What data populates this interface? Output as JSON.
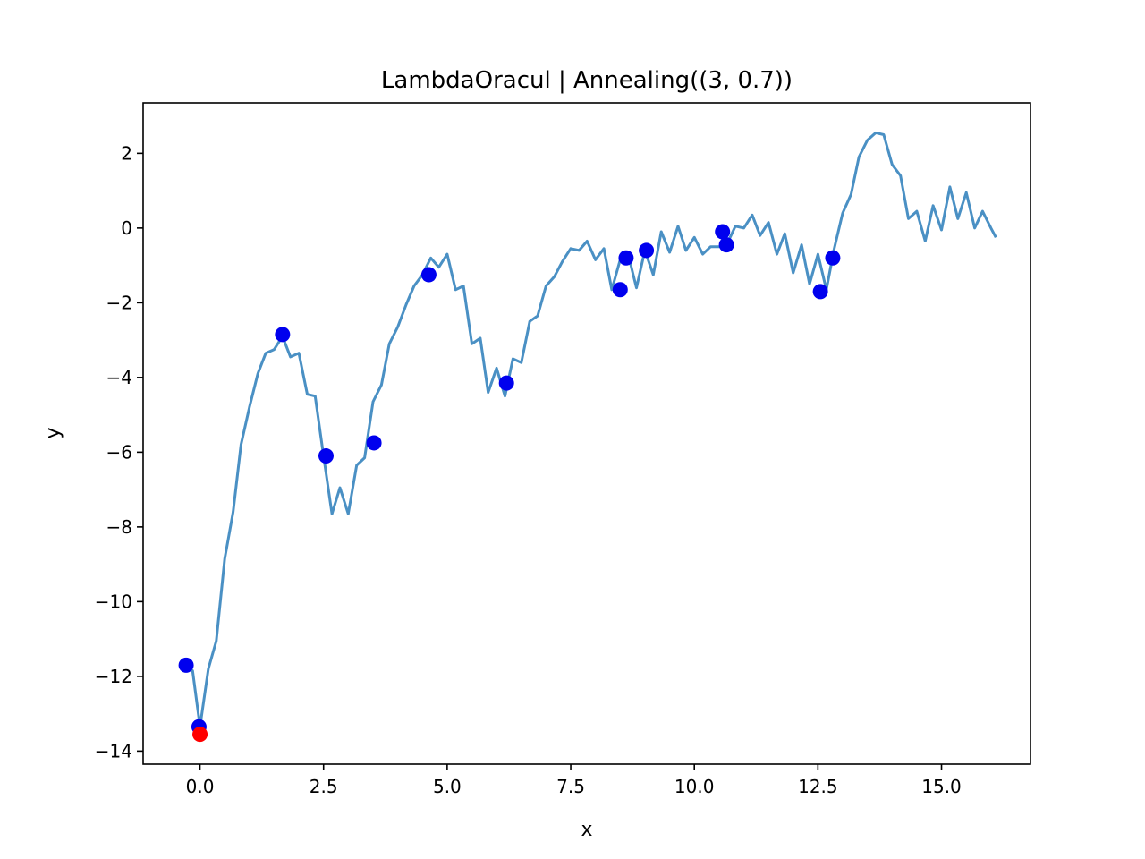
{
  "chart_data": {
    "type": "line",
    "title": "LambdaOracul | Annealing((3, 0.7))",
    "xlabel": "x",
    "ylabel": "y",
    "xlim": [
      -1.15,
      16.8
    ],
    "ylim": [
      -14.35,
      3.35
    ],
    "x_ticks": [
      0.0,
      2.5,
      5.0,
      7.5,
      10.0,
      12.5,
      15.0
    ],
    "x_tick_labels": [
      "0.0",
      "2.5",
      "5.0",
      "7.5",
      "10.0",
      "12.5",
      "15.0"
    ],
    "y_ticks": [
      2,
      0,
      -2,
      -4,
      -6,
      -8,
      -10,
      -12,
      -14
    ],
    "y_tick_labels": [
      "2",
      "0",
      "−2",
      "−4",
      "−6",
      "−8",
      "−10",
      "−12",
      "−14"
    ],
    "grid": false,
    "colors": {
      "line": "#4a90c4",
      "points": "#0000ee",
      "best_point": "#ff0000"
    },
    "series": [
      {
        "kind": "line",
        "x": [
          -0.3,
          -0.15,
          0.0,
          0.17,
          0.33,
          0.5,
          0.67,
          0.83,
          1.0,
          1.17,
          1.33,
          1.5,
          1.67,
          1.83,
          2.0,
          2.17,
          2.33,
          2.5,
          2.67,
          2.83,
          3.0,
          3.17,
          3.33,
          3.5,
          3.67,
          3.83,
          4.0,
          4.17,
          4.33,
          4.5,
          4.67,
          4.83,
          5.0,
          5.17,
          5.33,
          5.5,
          5.67,
          5.83,
          6.0,
          6.17,
          6.33,
          6.5,
          6.67,
          6.83,
          7.0,
          7.17,
          7.33,
          7.5,
          7.67,
          7.83,
          8.0,
          8.17,
          8.33,
          8.5,
          8.67,
          8.83,
          9.0,
          9.17,
          9.33,
          9.5,
          9.67,
          9.83,
          10.0,
          10.17,
          10.33,
          10.5,
          10.67,
          10.83,
          11.0,
          11.17,
          11.33,
          11.5,
          11.67,
          11.83,
          12.0,
          12.17,
          12.33,
          12.5,
          12.67,
          12.83,
          13.0,
          13.17,
          13.33,
          13.5,
          13.67,
          13.83,
          14.0,
          14.17,
          14.33,
          14.5,
          14.67,
          14.83,
          15.0,
          15.17,
          15.33,
          15.5,
          15.67,
          15.83,
          16.0,
          16.1
        ],
        "y": [
          -11.7,
          -11.85,
          -13.35,
          -11.8,
          -11.05,
          -8.85,
          -7.6,
          -5.8,
          -4.8,
          -3.9,
          -3.35,
          -3.25,
          -2.9,
          -3.45,
          -3.35,
          -4.45,
          -4.5,
          -6.1,
          -7.65,
          -6.95,
          -7.65,
          -6.35,
          -6.15,
          -4.65,
          -4.2,
          -3.1,
          -2.65,
          -2.05,
          -1.55,
          -1.25,
          -0.8,
          -1.05,
          -0.7,
          -1.65,
          -1.55,
          -3.1,
          -2.95,
          -4.4,
          -3.75,
          -4.5,
          -3.5,
          -3.6,
          -2.5,
          -2.35,
          -1.55,
          -1.3,
          -0.9,
          -0.55,
          -0.6,
          -0.35,
          -0.85,
          -0.55,
          -1.65,
          -0.85,
          -0.75,
          -1.6,
          -0.6,
          -1.25,
          -0.1,
          -0.65,
          0.05,
          -0.6,
          -0.25,
          -0.7,
          -0.5,
          -0.5,
          -0.4,
          0.05,
          0.0,
          0.35,
          -0.2,
          0.15,
          -0.7,
          -0.15,
          -1.2,
          -0.45,
          -1.5,
          -0.7,
          -1.65,
          -0.55,
          0.4,
          0.9,
          1.9,
          2.35,
          2.55,
          2.5,
          1.7,
          1.4,
          0.25,
          0.45,
          -0.35,
          0.6,
          -0.05,
          1.1,
          0.25,
          0.95,
          0.0,
          0.45,
          0.0,
          -0.25
        ]
      },
      {
        "kind": "scatter",
        "x": [
          -0.28,
          -0.02,
          1.67,
          2.55,
          3.52,
          4.63,
          6.2,
          8.5,
          8.62,
          9.03,
          10.57,
          10.65,
          12.55,
          12.8
        ],
        "y": [
          -11.7,
          -13.35,
          -2.85,
          -6.1,
          -5.75,
          -1.25,
          -4.15,
          -1.65,
          -0.8,
          -0.6,
          -0.1,
          -0.45,
          -1.7,
          -0.8
        ]
      },
      {
        "kind": "best",
        "x": [
          0.0
        ],
        "y": [
          -13.55
        ]
      }
    ]
  }
}
